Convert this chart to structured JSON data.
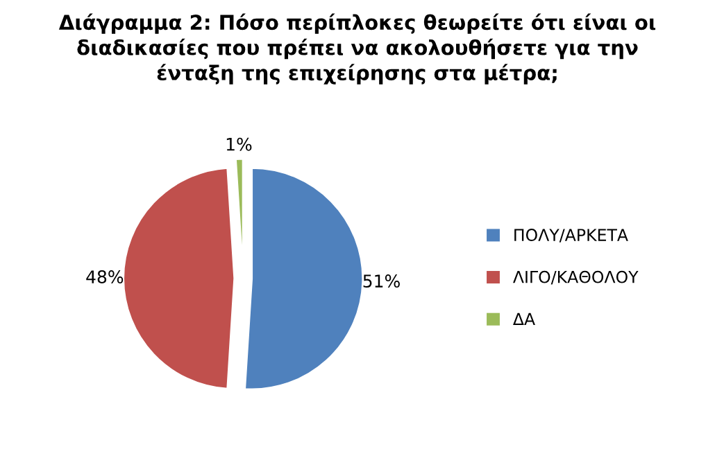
{
  "chart_data": {
    "type": "pie",
    "title": "Διάγραμμα 2: Πόσο περίπλοκες θεωρείτε ότι είναι οι\nδιαδικασίες που πρέπει να ακολουθήσετε για την\nένταξη της επιχείρησης στα μέτρα;",
    "categories": [
      "ΠΟΛΥ/ΑΡΚΕΤΑ",
      "ΛΙΓΟ/ΚΑΘΟΛΟΥ",
      "ΔΑ"
    ],
    "values": [
      51,
      48,
      1
    ],
    "colors": [
      "#4f81bd",
      "#c0504d",
      "#9bbb59"
    ],
    "value_labels": [
      "51%",
      "48%",
      "1%"
    ],
    "legend": "right"
  }
}
